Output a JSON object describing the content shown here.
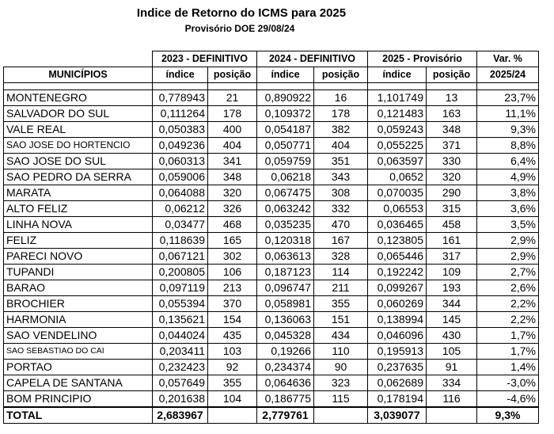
{
  "header": {
    "title": "Indice  de Retorno do ICMS para  2025",
    "subtitle": "Provisório DOE 29/08/24"
  },
  "columns": {
    "group_2023": "2023 - DEFINITIVO",
    "group_2024": "2024 - DEFINITIVO",
    "group_2025": "2025 - Provisório",
    "var_top": "Var. %",
    "municipios": "MUNICÍPIOS",
    "indice": "índice",
    "posicao": "posição",
    "var_bottom": "2025/24"
  },
  "rows": [
    {
      "name": "MONTENEGRO",
      "i2023": "0,778943",
      "p2023": "21",
      "i2024": "0,890922",
      "p2024": "16",
      "i2025": "1,101749",
      "p2025": "13",
      "var": "23,7%"
    },
    {
      "name": "SALVADOR DO SUL",
      "i2023": "0,111264",
      "p2023": "178",
      "i2024": "0,109372",
      "p2024": "178",
      "i2025": "0,121483",
      "p2025": "163",
      "var": "11,1%"
    },
    {
      "name": "VALE REAL",
      "i2023": "0,050383",
      "p2023": "400",
      "i2024": "0,054187",
      "p2024": "382",
      "i2025": "0,059243",
      "p2025": "348",
      "var": "9,3%"
    },
    {
      "name": "SAO JOSE DO HORTENCIO",
      "i2023": "0,049236",
      "p2023": "404",
      "i2024": "0,050771",
      "p2024": "404",
      "i2025": "0,055225",
      "p2025": "371",
      "var": "8,8%"
    },
    {
      "name": "SAO JOSE DO SUL",
      "i2023": "0,060313",
      "p2023": "341",
      "i2024": "0,059759",
      "p2024": "351",
      "i2025": "0,063597",
      "p2025": "330",
      "var": "6,4%"
    },
    {
      "name": "SAO PEDRO DA SERRA",
      "i2023": "0,059006",
      "p2023": "348",
      "i2024": "0,06218",
      "p2024": "343",
      "i2025": "0,0652",
      "p2025": "320",
      "var": "4,9%"
    },
    {
      "name": "MARATA",
      "i2023": "0,064088",
      "p2023": "320",
      "i2024": "0,067475",
      "p2024": "308",
      "i2025": "0,070035",
      "p2025": "290",
      "var": "3,8%"
    },
    {
      "name": "ALTO FELIZ",
      "i2023": "0,06212",
      "p2023": "326",
      "i2024": "0,063242",
      "p2024": "332",
      "i2025": "0,06553",
      "p2025": "315",
      "var": "3,6%"
    },
    {
      "name": "LINHA NOVA",
      "i2023": "0,03477",
      "p2023": "468",
      "i2024": "0,035235",
      "p2024": "470",
      "i2025": "0,036465",
      "p2025": "458",
      "var": "3,5%"
    },
    {
      "name": "FELIZ",
      "i2023": "0,118639",
      "p2023": "165",
      "i2024": "0,120318",
      "p2024": "167",
      "i2025": "0,123805",
      "p2025": "161",
      "var": "2,9%"
    },
    {
      "name": "PARECI NOVO",
      "i2023": "0,067121",
      "p2023": "302",
      "i2024": "0,063613",
      "p2024": "328",
      "i2025": "0,065446",
      "p2025": "317",
      "var": "2,9%"
    },
    {
      "name": "TUPANDI",
      "i2023": "0,200805",
      "p2023": "106",
      "i2024": "0,187123",
      "p2024": "114",
      "i2025": "0,192242",
      "p2025": "109",
      "var": "2,7%"
    },
    {
      "name": "BARAO",
      "i2023": "0,097119",
      "p2023": "213",
      "i2024": "0,096747",
      "p2024": "211",
      "i2025": "0,099267",
      "p2025": "193",
      "var": "2,6%"
    },
    {
      "name": "BROCHIER",
      "i2023": "0,055394",
      "p2023": "370",
      "i2024": "0,058981",
      "p2024": "355",
      "i2025": "0,060269",
      "p2025": "344",
      "var": "2,2%"
    },
    {
      "name": "HARMONIA",
      "i2023": "0,135621",
      "p2023": "154",
      "i2024": "0,136063",
      "p2024": "151",
      "i2025": "0,138994",
      "p2025": "145",
      "var": "2,2%"
    },
    {
      "name": "SAO VENDELINO",
      "i2023": "0,044024",
      "p2023": "435",
      "i2024": "0,045328",
      "p2024": "434",
      "i2025": "0,046096",
      "p2025": "430",
      "var": "1,7%"
    },
    {
      "name": "SAO SEBASTIAO DO CAI",
      "i2023": "0,203411",
      "p2023": "103",
      "i2024": "0,19266",
      "p2024": "110",
      "i2025": "0,195913",
      "p2025": "105",
      "var": "1,7%"
    },
    {
      "name": "PORTAO",
      "i2023": "0,232423",
      "p2023": "92",
      "i2024": "0,234374",
      "p2024": "90",
      "i2025": "0,237635",
      "p2025": "91",
      "var": "1,4%"
    },
    {
      "name": "CAPELA DE SANTANA",
      "i2023": "0,057649",
      "p2023": "355",
      "i2024": "0,064636",
      "p2024": "323",
      "i2025": "0,062689",
      "p2025": "334",
      "var": "-3,0%"
    },
    {
      "name": "BOM PRINCIPIO",
      "i2023": "0,201638",
      "p2023": "104",
      "i2024": "0,186775",
      "p2024": "115",
      "i2025": "0,178194",
      "p2025": "116",
      "var": "-4,6%"
    }
  ],
  "total": {
    "label": "TOTAL",
    "i2023": "2,683967",
    "i2024": "2,779761",
    "i2025": "3,039077",
    "var": "9,3%"
  }
}
